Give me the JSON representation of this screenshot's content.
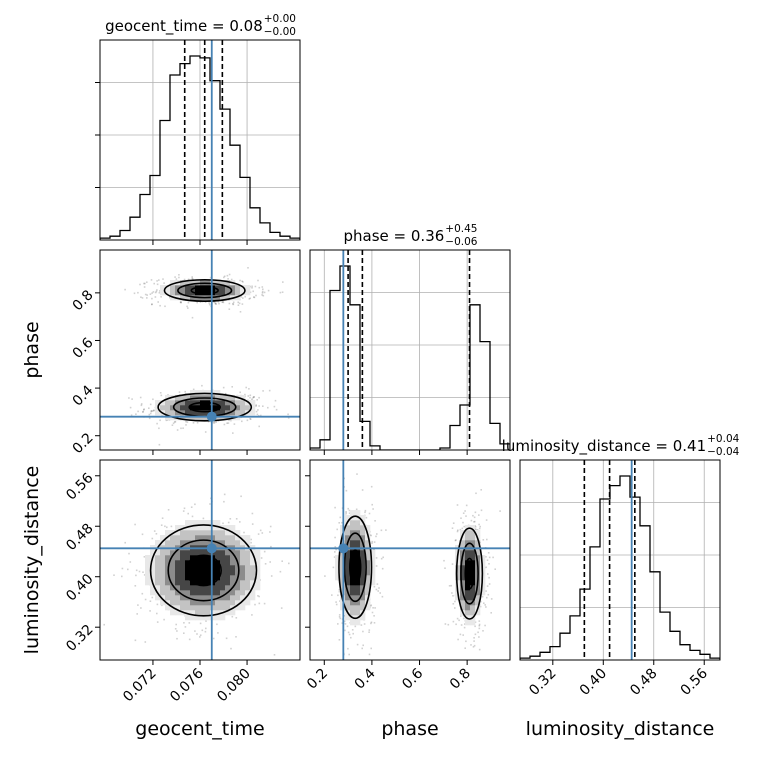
{
  "chart_data": {
    "type": "corner",
    "parameters": [
      "geocent_time",
      "phase",
      "luminosity_distance"
    ],
    "axis_labels": {
      "geocent_time": "geocent_time",
      "phase": "phase",
      "luminosity_distance": "luminosity_distance"
    },
    "ranges": {
      "geocent_time": [
        0.0675,
        0.0845
      ],
      "phase": [
        0.14,
        0.98
      ],
      "luminosity_distance": [
        0.268,
        0.585
      ]
    },
    "ticks": {
      "geocent_time": [
        0.072,
        0.076,
        0.08
      ],
      "phase": [
        0.2,
        0.4,
        0.6,
        0.8
      ],
      "luminosity_distance": [
        0.32,
        0.4,
        0.48,
        0.56
      ]
    },
    "tick_labels": {
      "geocent_time": [
        "0.072",
        "0.076",
        "0.080"
      ],
      "phase": [
        "0.2",
        "0.4",
        "0.6",
        "0.8"
      ],
      "luminosity_distance": [
        "0.32",
        "0.40",
        "0.48",
        "0.56"
      ]
    },
    "truths": {
      "geocent_time": 0.077,
      "phase": 0.28,
      "luminosity_distance": 0.445
    },
    "titles": [
      {
        "param": "geocent_time",
        "text": "geocent_time = 0.08",
        "plus": "+0.00",
        "minus": "−0.00"
      },
      {
        "param": "phase",
        "text": "phase = 0.36",
        "plus": "+0.45",
        "minus": "−0.06"
      },
      {
        "param": "luminosity_distance",
        "text": "luminosity_distance = 0.41",
        "plus": "+0.04",
        "minus": "−0.04"
      }
    ],
    "quantiles": {
      "geocent_time": [
        0.0747,
        0.0764,
        0.0779
      ],
      "phase": [
        0.3,
        0.36,
        0.81
      ],
      "luminosity_distance": [
        0.37,
        0.41,
        0.45
      ]
    },
    "histograms": {
      "geocent_time": [
        0.01,
        0.02,
        0.05,
        0.12,
        0.24,
        0.34,
        0.63,
        0.87,
        0.93,
        0.97,
        0.96,
        0.84,
        0.69,
        0.5,
        0.33,
        0.17,
        0.09,
        0.04,
        0.02,
        0.01
      ],
      "phase": [
        0.01,
        0.05,
        0.78,
        0.9,
        0.71,
        0.14,
        0.02,
        0.0,
        0.0,
        0.0,
        0.0,
        0.0,
        0.0,
        0.01,
        0.12,
        0.22,
        0.71,
        0.53,
        0.13,
        0.03
      ],
      "luminosity_distance": [
        0.01,
        0.02,
        0.04,
        0.07,
        0.14,
        0.23,
        0.37,
        0.59,
        0.84,
        0.91,
        0.96,
        0.85,
        0.7,
        0.46,
        0.25,
        0.15,
        0.08,
        0.05,
        0.03,
        0.01
      ]
    },
    "density_2d": [
      {
        "x": "geocent_time",
        "y": "phase",
        "modes": [
          {
            "cx": 0.0764,
            "cy": 0.32,
            "sx": 0.0022,
            "sy": 0.032
          },
          {
            "cx": 0.0764,
            "cy": 0.81,
            "sx": 0.0019,
            "sy": 0.025
          }
        ]
      },
      {
        "x": "geocent_time",
        "y": "luminosity_distance",
        "modes": [
          {
            "cx": 0.0763,
            "cy": 0.41,
            "sx": 0.0025,
            "sy": 0.04
          }
        ]
      },
      {
        "x": "phase",
        "y": "luminosity_distance",
        "modes": [
          {
            "cx": 0.33,
            "cy": 0.415,
            "sx": 0.038,
            "sy": 0.045
          },
          {
            "cx": 0.81,
            "cy": 0.405,
            "sx": 0.03,
            "sy": 0.04
          }
        ]
      }
    ]
  }
}
